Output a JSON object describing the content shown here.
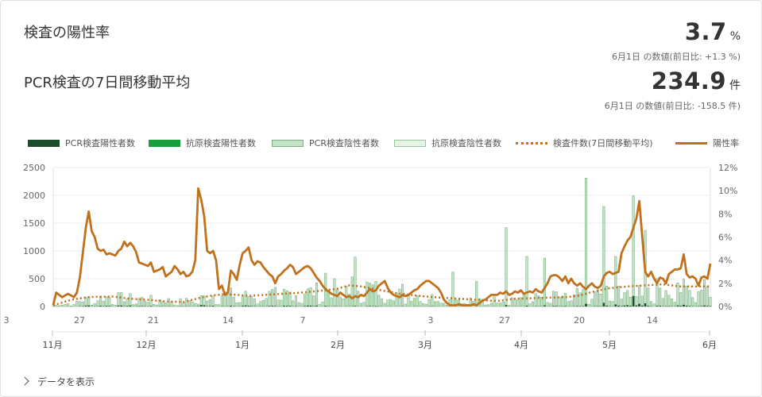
{
  "titles": {
    "positivity": "検査の陽性率",
    "avg": "PCR検査の7日間移動平均"
  },
  "kpi": {
    "rate_value": "3.7",
    "rate_unit": "%",
    "rate_sub": "6月1日 の数値(前日比: +1.3 %)",
    "avg_value": "234.9",
    "avg_unit": "件",
    "avg_sub": "6月1日 の数値(前日比: -158.5 件)"
  },
  "legend": [
    {
      "label": "PCR検査陽性者数",
      "kind": "bar",
      "color": "#1e4d2b"
    },
    {
      "label": "抗原検査陽性者数",
      "kind": "bar",
      "color": "#1a9e3f"
    },
    {
      "label": "PCR検査陰性者数",
      "kind": "bar",
      "color": "#c3e3c6"
    },
    {
      "label": "抗原検査陰性者数",
      "kind": "bar",
      "color": "#e6f4e7"
    },
    {
      "label": "検査件数(7日間移動平均)",
      "kind": "dotted",
      "color": "#c0711d"
    },
    {
      "label": "陽性率",
      "kind": "solid",
      "color": "#c0711d"
    }
  ],
  "more_label": "データを表示",
  "chart_data": {
    "type": "bar",
    "ylim_left": [
      0,
      2500
    ],
    "yticks_left": [
      "0",
      "500",
      "1000",
      "1500",
      "2000",
      "2500"
    ],
    "ylim_right": [
      0,
      12
    ],
    "yticks_right": [
      "0%",
      "2%",
      "4%",
      "6%",
      "8%",
      "10%",
      "12%"
    ],
    "x_tick_labels": [
      "3",
      "27",
      "21",
      "14",
      "7",
      "3",
      "27",
      "20",
      "14"
    ],
    "month_labels": [
      "11月",
      "12月",
      "1月",
      "2月",
      "3月",
      "4月",
      "5月",
      "6月"
    ],
    "colors": {
      "pcr_positive": "#1e4d2b",
      "antigen_positive": "#1a9e3f",
      "pcr_negative": "#c3e3c6",
      "antigen_negative": "#e6f4e7",
      "line": "#c0711d"
    },
    "bar_total_anchors": [
      [
        0,
        10
      ],
      [
        6,
        60
      ],
      [
        12,
        140
      ],
      [
        20,
        170
      ],
      [
        26,
        150
      ],
      [
        32,
        130
      ],
      [
        38,
        110
      ],
      [
        44,
        90
      ],
      [
        50,
        150
      ],
      [
        54,
        200
      ],
      [
        58,
        220
      ],
      [
        62,
        210
      ],
      [
        66,
        190
      ],
      [
        72,
        200
      ],
      [
        78,
        240
      ],
      [
        84,
        250
      ],
      [
        90,
        280
      ],
      [
        96,
        320
      ],
      [
        100,
        400
      ],
      [
        104,
        380
      ],
      [
        110,
        300
      ],
      [
        116,
        230
      ],
      [
        122,
        200
      ],
      [
        128,
        160
      ],
      [
        134,
        140
      ],
      [
        140,
        120
      ],
      [
        146,
        110
      ],
      [
        152,
        130
      ],
      [
        158,
        150
      ],
      [
        164,
        160
      ],
      [
        170,
        180
      ],
      [
        176,
        200
      ],
      [
        182,
        240
      ],
      [
        188,
        280
      ],
      [
        194,
        300
      ],
      [
        200,
        320
      ],
      [
        206,
        330
      ],
      [
        212,
        330
      ]
    ],
    "bar_spikes": [
      [
        102,
        890
      ],
      [
        92,
        600
      ],
      [
        118,
        400
      ],
      [
        135,
        620
      ],
      [
        143,
        450
      ],
      [
        153,
        1420
      ],
      [
        160,
        900
      ],
      [
        166,
        870
      ],
      [
        180,
        2310
      ],
      [
        186,
        1800
      ],
      [
        196,
        1990
      ],
      [
        200,
        1370
      ],
      [
        190,
        900
      ]
    ],
    "negative_line_dotted_anchors": [
      [
        0,
        20
      ],
      [
        6,
        120
      ],
      [
        12,
        170
      ],
      [
        20,
        180
      ],
      [
        26,
        140
      ],
      [
        32,
        120
      ],
      [
        38,
        90
      ],
      [
        44,
        80
      ],
      [
        50,
        160
      ],
      [
        54,
        200
      ],
      [
        58,
        220
      ],
      [
        62,
        210
      ],
      [
        66,
        190
      ],
      [
        72,
        210
      ],
      [
        78,
        230
      ],
      [
        84,
        250
      ],
      [
        90,
        280
      ],
      [
        96,
        320
      ],
      [
        100,
        380
      ],
      [
        104,
        360
      ],
      [
        110,
        300
      ],
      [
        116,
        240
      ],
      [
        122,
        200
      ],
      [
        128,
        170
      ],
      [
        134,
        150
      ],
      [
        140,
        130
      ],
      [
        146,
        110
      ],
      [
        150,
        100
      ],
      [
        156,
        140
      ],
      [
        162,
        150
      ],
      [
        168,
        160
      ],
      [
        174,
        170
      ],
      [
        178,
        200
      ],
      [
        182,
        260
      ],
      [
        188,
        330
      ],
      [
        194,
        360
      ],
      [
        200,
        380
      ],
      [
        206,
        400
      ],
      [
        212,
        360
      ]
    ],
    "positivity_anchors": [
      [
        0,
        0.1
      ],
      [
        1,
        1.2
      ],
      [
        3,
        0.8
      ],
      [
        5,
        1.1
      ],
      [
        7,
        0.8
      ],
      [
        8,
        1.2
      ],
      [
        9,
        2.5
      ],
      [
        11,
        6.8
      ],
      [
        12,
        8.2
      ],
      [
        13,
        6.5
      ],
      [
        14,
        6.0
      ],
      [
        15,
        5.0
      ],
      [
        16,
        4.8
      ],
      [
        17,
        4.9
      ],
      [
        18,
        4.5
      ],
      [
        19,
        4.6
      ],
      [
        20,
        4.5
      ],
      [
        21,
        4.4
      ],
      [
        22,
        4.8
      ],
      [
        23,
        5.0
      ],
      [
        24,
        5.6
      ],
      [
        25,
        5.2
      ],
      [
        26,
        5.5
      ],
      [
        27,
        5.2
      ],
      [
        28,
        4.7
      ],
      [
        29,
        3.8
      ],
      [
        30,
        3.7
      ],
      [
        31,
        3.6
      ],
      [
        32,
        3.5
      ],
      [
        33,
        3.8
      ],
      [
        34,
        3.0
      ],
      [
        35,
        3.1
      ],
      [
        36,
        3.2
      ],
      [
        37,
        3.4
      ],
      [
        38,
        2.6
      ],
      [
        39,
        2.8
      ],
      [
        40,
        3.0
      ],
      [
        41,
        3.5
      ],
      [
        42,
        3.2
      ],
      [
        43,
        2.8
      ],
      [
        44,
        3.0
      ],
      [
        45,
        2.6
      ],
      [
        46,
        2.7
      ],
      [
        47,
        3.0
      ],
      [
        48,
        4.0
      ],
      [
        49,
        10.2
      ],
      [
        50,
        9.2
      ],
      [
        51,
        7.8
      ],
      [
        52,
        4.8
      ],
      [
        53,
        4.6
      ],
      [
        54,
        4.8
      ],
      [
        55,
        4.0
      ],
      [
        56,
        1.5
      ],
      [
        57,
        1.8
      ],
      [
        58,
        1.0
      ],
      [
        59,
        1.2
      ],
      [
        60,
        3.1
      ],
      [
        61,
        2.8
      ],
      [
        62,
        2.3
      ],
      [
        63,
        3.6
      ],
      [
        64,
        4.6
      ],
      [
        65,
        4.8
      ],
      [
        66,
        5.1
      ],
      [
        67,
        4.0
      ],
      [
        68,
        3.6
      ],
      [
        69,
        3.9
      ],
      [
        70,
        3.8
      ],
      [
        71,
        3.4
      ],
      [
        72,
        3.1
      ],
      [
        73,
        2.8
      ],
      [
        74,
        2.6
      ],
      [
        75,
        2.0
      ],
      [
        76,
        2.6
      ],
      [
        77,
        2.8
      ],
      [
        78,
        3.1
      ],
      [
        79,
        3.3
      ],
      [
        80,
        3.6
      ],
      [
        81,
        3.4
      ],
      [
        82,
        2.8
      ],
      [
        83,
        3.0
      ],
      [
        84,
        3.2
      ],
      [
        85,
        3.4
      ],
      [
        86,
        3.5
      ],
      [
        87,
        3.3
      ],
      [
        88,
        2.9
      ],
      [
        89,
        2.5
      ],
      [
        90,
        2.2
      ],
      [
        91,
        1.8
      ],
      [
        92,
        1.5
      ],
      [
        93,
        1.3
      ],
      [
        94,
        1.1
      ],
      [
        95,
        1.0
      ],
      [
        96,
        0.9
      ],
      [
        97,
        1.2
      ],
      [
        98,
        1.0
      ],
      [
        99,
        0.8
      ],
      [
        100,
        0.9
      ],
      [
        101,
        0.7
      ],
      [
        102,
        0.9
      ],
      [
        103,
        0.8
      ],
      [
        104,
        1.0
      ],
      [
        105,
        0.9
      ],
      [
        106,
        1.2
      ],
      [
        107,
        1.5
      ],
      [
        108,
        1.3
      ],
      [
        109,
        1.4
      ],
      [
        110,
        1.8
      ],
      [
        111,
        2.0
      ],
      [
        112,
        2.2
      ],
      [
        113,
        1.6
      ],
      [
        114,
        1.2
      ],
      [
        115,
        1.0
      ],
      [
        116,
        0.9
      ],
      [
        117,
        0.8
      ],
      [
        118,
        1.0
      ],
      [
        119,
        0.9
      ],
      [
        120,
        1.0
      ],
      [
        121,
        1.2
      ],
      [
        122,
        1.4
      ],
      [
        123,
        1.5
      ],
      [
        124,
        1.8
      ],
      [
        125,
        2.0
      ],
      [
        126,
        2.2
      ],
      [
        127,
        2.2
      ],
      [
        128,
        2.0
      ],
      [
        129,
        1.8
      ],
      [
        130,
        1.6
      ],
      [
        131,
        1.2
      ],
      [
        132,
        0.6
      ],
      [
        133,
        0.3
      ],
      [
        134,
        0.1
      ],
      [
        135,
        0.1
      ],
      [
        136,
        0.1
      ],
      [
        137,
        0.2
      ],
      [
        138,
        0.1
      ],
      [
        139,
        0.1
      ],
      [
        140,
        0.1
      ],
      [
        141,
        0.1
      ],
      [
        142,
        0.2
      ],
      [
        143,
        0.1
      ],
      [
        144,
        0.3
      ],
      [
        145,
        0.5
      ],
      [
        146,
        0.6
      ],
      [
        147,
        0.8
      ],
      [
        148,
        1.0
      ],
      [
        149,
        1.0
      ],
      [
        150,
        1.0
      ],
      [
        151,
        1.2
      ],
      [
        152,
        1.1
      ],
      [
        153,
        1.3
      ],
      [
        154,
        1.0
      ],
      [
        155,
        1.1
      ],
      [
        156,
        1.3
      ],
      [
        157,
        1.2
      ],
      [
        158,
        1.4
      ],
      [
        159,
        1.1
      ],
      [
        160,
        1.2
      ],
      [
        161,
        1.3
      ],
      [
        162,
        1.2
      ],
      [
        163,
        1.5
      ],
      [
        164,
        1.3
      ],
      [
        165,
        1.2
      ],
      [
        166,
        1.6
      ],
      [
        167,
        2.0
      ],
      [
        168,
        2.6
      ],
      [
        169,
        2.7
      ],
      [
        170,
        2.7
      ],
      [
        171,
        2.5
      ],
      [
        172,
        2.2
      ],
      [
        173,
        2.6
      ],
      [
        174,
        2.0
      ],
      [
        175,
        2.4
      ],
      [
        176,
        2.0
      ],
      [
        177,
        1.8
      ],
      [
        178,
        2.0
      ],
      [
        179,
        1.7
      ],
      [
        180,
        1.5
      ],
      [
        181,
        1.8
      ],
      [
        182,
        2.0
      ],
      [
        183,
        1.7
      ],
      [
        184,
        1.6
      ],
      [
        185,
        1.8
      ],
      [
        186,
        2.6
      ],
      [
        187,
        2.9
      ],
      [
        188,
        3.0
      ],
      [
        189,
        2.8
      ],
      [
        190,
        2.9
      ],
      [
        191,
        3.0
      ],
      [
        192,
        4.6
      ],
      [
        193,
        5.2
      ],
      [
        194,
        5.7
      ],
      [
        195,
        6.0
      ],
      [
        196,
        6.8
      ],
      [
        197,
        7.6
      ],
      [
        198,
        9.1
      ],
      [
        199,
        6.0
      ],
      [
        200,
        3.0
      ],
      [
        201,
        2.6
      ],
      [
        202,
        3.0
      ],
      [
        203,
        2.4
      ],
      [
        204,
        2.0
      ],
      [
        205,
        2.5
      ],
      [
        206,
        2.4
      ],
      [
        207,
        2.0
      ],
      [
        208,
        2.8
      ],
      [
        209,
        3.0
      ],
      [
        210,
        3.2
      ],
      [
        211,
        3.2
      ],
      [
        212,
        3.3
      ],
      [
        213,
        4.5
      ],
      [
        214,
        2.8
      ],
      [
        215,
        2.5
      ],
      [
        216,
        2.6
      ],
      [
        217,
        2.4
      ],
      [
        218,
        1.8
      ],
      [
        219,
        2.5
      ],
      [
        220,
        2.6
      ],
      [
        221,
        2.4
      ],
      [
        222,
        3.7
      ]
    ]
  }
}
